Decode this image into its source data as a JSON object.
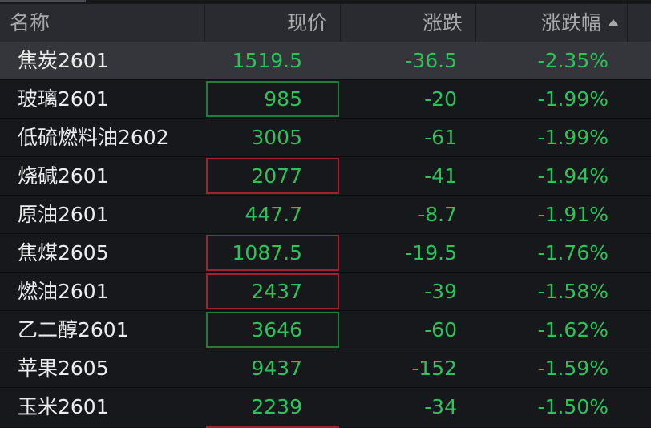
{
  "header": {
    "name": "名称",
    "price": "现价",
    "change": "涨跌",
    "pct": "涨跌幅",
    "sort_icon": "triangle-up"
  },
  "colors": {
    "down": "#2fc25a",
    "box_green": "#1e7d39",
    "box_red": "#a3202e"
  },
  "rows": [
    {
      "name": "焦炭2601",
      "price": "1519.5",
      "change": "-36.5",
      "pct": "-2.35%",
      "box": "none",
      "selected": true
    },
    {
      "name": "玻璃2601",
      "price": "985",
      "change": "-20",
      "pct": "-1.99%",
      "box": "green"
    },
    {
      "name": "低硫燃料油2602",
      "price": "3005",
      "change": "-61",
      "pct": "-1.99%",
      "box": "none"
    },
    {
      "name": "烧碱2601",
      "price": "2077",
      "change": "-41",
      "pct": "-1.94%",
      "box": "red"
    },
    {
      "name": "原油2601",
      "price": "447.7",
      "change": "-8.7",
      "pct": "-1.91%",
      "box": "none"
    },
    {
      "name": "焦煤2605",
      "price": "1087.5",
      "change": "-19.5",
      "pct": "-1.76%",
      "box": "red"
    },
    {
      "name": "燃油2601",
      "price": "2437",
      "change": "-39",
      "pct": "-1.58%",
      "box": "red"
    },
    {
      "name": "乙二醇2601",
      "price": "3646",
      "change": "-60",
      "pct": "-1.62%",
      "box": "green"
    },
    {
      "name": "苹果2605",
      "price": "9437",
      "change": "-152",
      "pct": "-1.59%",
      "box": "none"
    },
    {
      "name": "玉米2601",
      "price": "2239",
      "change": "-34",
      "pct": "-1.50%",
      "box": "none"
    }
  ]
}
